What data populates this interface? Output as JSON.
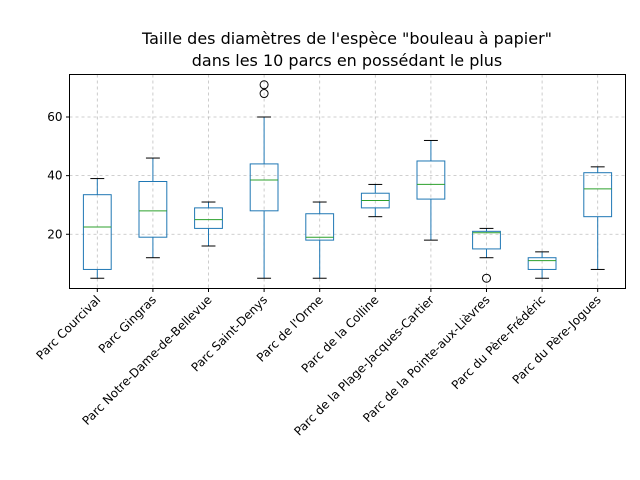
{
  "chart_data": {
    "type": "box",
    "title_lines": [
      "Taille des diamètres de l'espèce \"bouleau à papier\"",
      "dans les 10 parcs en possédant le plus"
    ],
    "xlabel": "",
    "ylabel": "",
    "ylim": [
      1.5,
      74.5
    ],
    "yticks": [
      20,
      40,
      60
    ],
    "grid": true,
    "colors": {
      "box": "#1f77b4",
      "median": "#2ca02c",
      "whisker": "#000000",
      "grid": "#b0b0b0"
    },
    "categories": [
      "Parc Courcival",
      "Parc Gingras",
      "Parc Notre-Dame-de-Bellevue",
      "Parc Saint-Denys",
      "Parc de l'Orme",
      "Parc de la Colline",
      "Parc de la Plage-Jacques-Cartier",
      "Parc de la Pointe-aux-Lièvres",
      "Parc du Père-Frédéric",
      "Parc du Père-Jogues"
    ],
    "boxes": [
      {
        "whislo": 5,
        "q1": 8,
        "med": 22.5,
        "q3": 33.5,
        "whishi": 39,
        "fliers": []
      },
      {
        "whislo": 12,
        "q1": 19,
        "med": 28,
        "q3": 38,
        "whishi": 46,
        "fliers": []
      },
      {
        "whislo": 16,
        "q1": 22,
        "med": 25,
        "q3": 29,
        "whishi": 31,
        "fliers": []
      },
      {
        "whislo": 5,
        "q1": 28,
        "med": 38.5,
        "q3": 44,
        "whishi": 60,
        "fliers": [
          68,
          71
        ]
      },
      {
        "whislo": 5,
        "q1": 18,
        "med": 19,
        "q3": 27,
        "whishi": 31,
        "fliers": []
      },
      {
        "whislo": 26,
        "q1": 29,
        "med": 31.5,
        "q3": 34,
        "whishi": 37,
        "fliers": []
      },
      {
        "whislo": 18,
        "q1": 32,
        "med": 37,
        "q3": 45,
        "whishi": 52,
        "fliers": []
      },
      {
        "whislo": 12,
        "q1": 15,
        "med": 20.5,
        "q3": 21,
        "whishi": 22,
        "fliers": [
          5
        ]
      },
      {
        "whislo": 5,
        "q1": 8,
        "med": 11,
        "q3": 12,
        "whishi": 14,
        "fliers": []
      },
      {
        "whislo": 8,
        "q1": 26,
        "med": 35.5,
        "q3": 41,
        "whishi": 43,
        "fliers": []
      }
    ]
  }
}
